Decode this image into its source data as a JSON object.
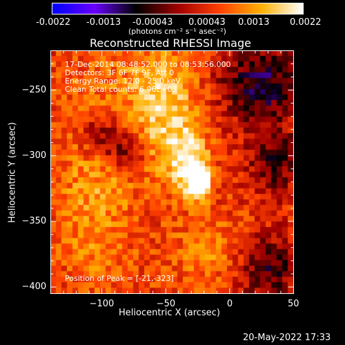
{
  "colorbar": {
    "ticks": [
      "-0.0022",
      "-0.0013",
      "-0.00043",
      "0.00043",
      "0.0013",
      "0.0022"
    ],
    "unit_label": "(photons cm⁻² s⁻¹ asec⁻²)",
    "colors": [
      "#0000ff",
      "#6a00ff",
      "#000000",
      "#a00000",
      "#ff4000",
      "#ffb000",
      "#ffffff"
    ]
  },
  "info": {
    "line1": "17-Dec-2014 08:48:52.000 to 08:53:56.000",
    "line2": "Detectors: 3F 6F 7F 9F, Att 0",
    "line3": "Energy Range: 12.0 - 25.0 keV",
    "line4": "Clean     Total counts: 6.96E+03",
    "peak": "Position of Peak = [-21,-323]"
  },
  "timestamp": "20-May-2022 17:33",
  "chart_data": {
    "type": "heatmap",
    "title": "Reconstructed RHESSI Image",
    "xlabel": "Heliocentric X (arcsec)",
    "ylabel": "Heliocentric Y (arcsec)",
    "xlim": [
      -140,
      50
    ],
    "ylim": [
      -405,
      -220
    ],
    "xticks": [
      -100,
      -50,
      0,
      50
    ],
    "yticks": [
      -250,
      -300,
      -350,
      -400
    ],
    "xtick_labels": [
      "−100",
      "−50",
      "0",
      "50"
    ],
    "ytick_labels": [
      "−250",
      "−300",
      "−350",
      "−400"
    ],
    "zlim": [
      -0.0022,
      0.0022
    ],
    "peak": {
      "x": -21,
      "y": -323
    },
    "sources": [
      {
        "x": -23,
        "y": -320,
        "sx": 6,
        "sy": 9,
        "amp": 0.0024
      },
      {
        "x": -32,
        "y": -306,
        "sx": 10,
        "sy": 16,
        "amp": 0.0013
      },
      {
        "x": -48,
        "y": -272,
        "sx": 18,
        "sy": 30,
        "amp": 0.0011
      },
      {
        "x": -62,
        "y": -240,
        "sx": 16,
        "sy": 16,
        "amp": 0.0005
      },
      {
        "x": -105,
        "y": -320,
        "sx": 22,
        "sy": 60,
        "amp": 0.0007
      },
      {
        "x": -15,
        "y": -375,
        "sx": 22,
        "sy": 18,
        "amp": 0.0006
      },
      {
        "x": -100,
        "y": -285,
        "sx": 12,
        "sy": 12,
        "amp": -0.0012
      },
      {
        "x": -80,
        "y": -298,
        "sx": 10,
        "sy": 10,
        "amp": -0.0009
      },
      {
        "x": 25,
        "y": -245,
        "sx": 22,
        "sy": 22,
        "amp": -0.0014
      },
      {
        "x": 35,
        "y": -305,
        "sx": 14,
        "sy": 18,
        "amp": -0.001
      },
      {
        "x": 30,
        "y": -385,
        "sx": 18,
        "sy": 18,
        "amp": -0.0012
      }
    ],
    "baseline": 0.0006
  }
}
